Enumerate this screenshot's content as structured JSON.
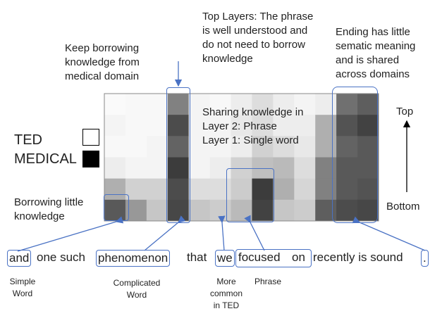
{
  "annotations": {
    "keep_borrowing": "Keep borrowing\nknowledge from\nmedical domain",
    "top_layers": "Top Layers: The phrase\nis well understood and\ndo not need to borrow\nknowledge",
    "ending": "Ending has little\nsematic meaning\nand is shared\nacross domains",
    "sharing": "Sharing knowledge in\nLayer 2: Phrase\nLayer 1: Single word",
    "borrowing_little": "Borrowing little\nknowledge",
    "top": "Top",
    "bottom": "Bottom"
  },
  "legend": {
    "ted": "TED",
    "medical": "MEDICAL"
  },
  "sentence": [
    "and",
    "one such",
    "phenomenon",
    "that",
    "we",
    "focused",
    "on",
    "recently is sound",
    "."
  ],
  "word_labels": {
    "simple": "Simple\nWord",
    "complicated": "Complicated\nWord",
    "more_common": "More\ncommon\nin TED",
    "phrase": "Phrase"
  },
  "heatmap": {
    "rows": 6,
    "cols": 13,
    "darkness": [
      [
        0.02,
        0.03,
        0.03,
        0.55,
        0.05,
        0.03,
        0.08,
        0.15,
        0.08,
        0.05,
        0.08,
        0.62,
        0.7
      ],
      [
        0.05,
        0.03,
        0.03,
        0.78,
        0.05,
        0.05,
        0.1,
        0.15,
        0.08,
        0.08,
        0.35,
        0.75,
        0.82
      ],
      [
        0.03,
        0.03,
        0.05,
        0.68,
        0.05,
        0.05,
        0.08,
        0.2,
        0.15,
        0.1,
        0.35,
        0.68,
        0.72
      ],
      [
        0.08,
        0.05,
        0.05,
        0.85,
        0.05,
        0.08,
        0.2,
        0.28,
        0.3,
        0.15,
        0.55,
        0.72,
        0.72
      ],
      [
        0.35,
        0.2,
        0.2,
        0.78,
        0.15,
        0.15,
        0.22,
        0.85,
        0.35,
        0.18,
        0.55,
        0.72,
        0.75
      ],
      [
        0.72,
        0.45,
        0.25,
        0.8,
        0.25,
        0.22,
        0.3,
        0.82,
        0.25,
        0.22,
        0.7,
        0.78,
        0.8
      ]
    ]
  }
}
